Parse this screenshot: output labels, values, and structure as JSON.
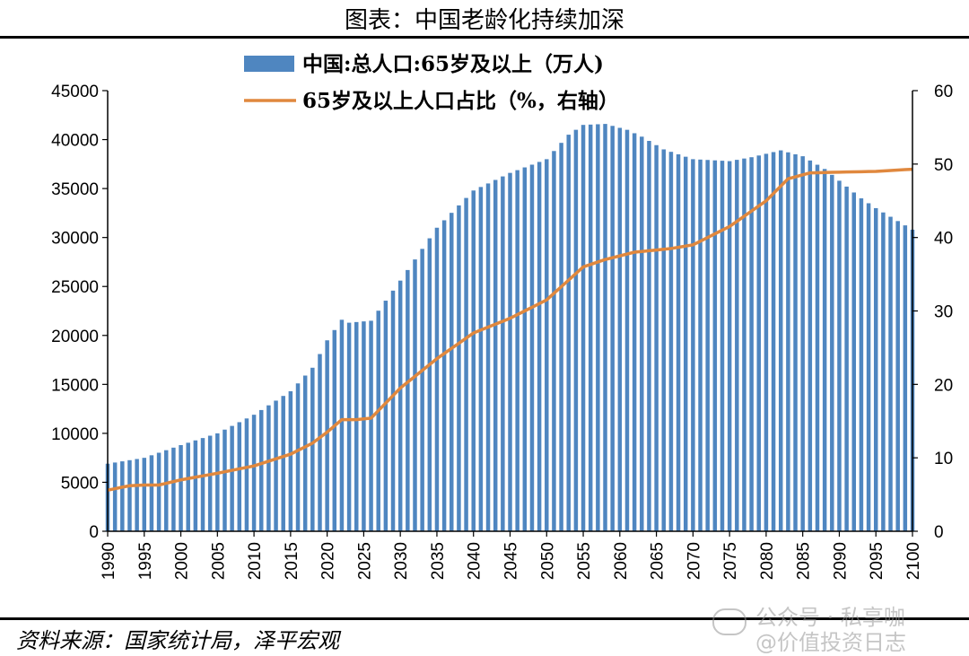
{
  "title": "图表：中国老龄化持续加深",
  "source": "资料来源：国家统计局，泽平宏观",
  "watermark": {
    "line1": "公众号 · 私享咖",
    "line2": "@价值投资日志",
    "icon": "wechat-icon"
  },
  "colors": {
    "bar": "#4f86c0",
    "line": "#e0883e",
    "axis": "#000000"
  },
  "chart_data": {
    "type": "bar",
    "x_range": [
      1990,
      2100
    ],
    "x_tick_labels": [
      "1990",
      "1995",
      "2000",
      "2005",
      "2010",
      "2015",
      "2020",
      "2025",
      "2030",
      "2035",
      "2040",
      "2045",
      "2050",
      "2055",
      "2060",
      "2065",
      "2070",
      "2075",
      "2080",
      "2085",
      "2090",
      "2095",
      "2100"
    ],
    "y_left_range": [
      0,
      45000
    ],
    "y_left_ticks": [
      "0",
      "5000",
      "10000",
      "15000",
      "20000",
      "25000",
      "30000",
      "35000",
      "40000",
      "45000"
    ],
    "y_right_range": [
      0,
      60
    ],
    "y_right_ticks": [
      "0",
      "10",
      "20",
      "30",
      "40",
      "50",
      "60"
    ],
    "legend_position": "top",
    "series": [
      {
        "name": "中国:总人口:65岁及以上（万人)",
        "type": "bar",
        "axis": "left",
        "x": [
          1990,
          2100
        ],
        "keypoints": [
          [
            1990,
            6900
          ],
          [
            1995,
            7500
          ],
          [
            2000,
            8800
          ],
          [
            2005,
            10000
          ],
          [
            2010,
            11900
          ],
          [
            2015,
            14300
          ],
          [
            2018,
            16700
          ],
          [
            2020,
            19500
          ],
          [
            2022,
            21600
          ],
          [
            2023,
            21300
          ],
          [
            2026,
            21500
          ],
          [
            2030,
            25600
          ],
          [
            2035,
            31000
          ],
          [
            2040,
            34800
          ],
          [
            2045,
            36600
          ],
          [
            2050,
            38000
          ],
          [
            2053,
            40500
          ],
          [
            2055,
            41500
          ],
          [
            2058,
            41600
          ],
          [
            2061,
            41000
          ],
          [
            2063,
            40300
          ],
          [
            2066,
            39000
          ],
          [
            2070,
            38000
          ],
          [
            2075,
            37800
          ],
          [
            2078,
            38200
          ],
          [
            2082,
            38900
          ],
          [
            2085,
            38300
          ],
          [
            2088,
            37000
          ],
          [
            2090,
            35800
          ],
          [
            2093,
            34000
          ],
          [
            2095,
            33000
          ],
          [
            2100,
            30800
          ]
        ]
      },
      {
        "name": "65岁及以上人口占比（%，右轴）",
        "type": "line",
        "axis": "right",
        "keypoints": [
          [
            1990,
            5.6
          ],
          [
            1993,
            6.2
          ],
          [
            1995,
            6.3
          ],
          [
            1997,
            6.3
          ],
          [
            2000,
            7.0
          ],
          [
            2005,
            7.9
          ],
          [
            2010,
            8.9
          ],
          [
            2015,
            10.5
          ],
          [
            2018,
            12.0
          ],
          [
            2020,
            13.5
          ],
          [
            2022,
            15.2
          ],
          [
            2024,
            15.2
          ],
          [
            2026,
            15.4
          ],
          [
            2030,
            19.5
          ],
          [
            2035,
            23.5
          ],
          [
            2040,
            27.0
          ],
          [
            2045,
            29.0
          ],
          [
            2050,
            31.5
          ],
          [
            2055,
            36.0
          ],
          [
            2058,
            37.0
          ],
          [
            2062,
            38.0
          ],
          [
            2067,
            38.5
          ],
          [
            2070,
            39.0
          ],
          [
            2075,
            41.5
          ],
          [
            2080,
            45.0
          ],
          [
            2083,
            48.0
          ],
          [
            2086,
            48.8
          ],
          [
            2090,
            48.9
          ],
          [
            2095,
            49.0
          ],
          [
            2100,
            49.3
          ]
        ]
      }
    ]
  }
}
